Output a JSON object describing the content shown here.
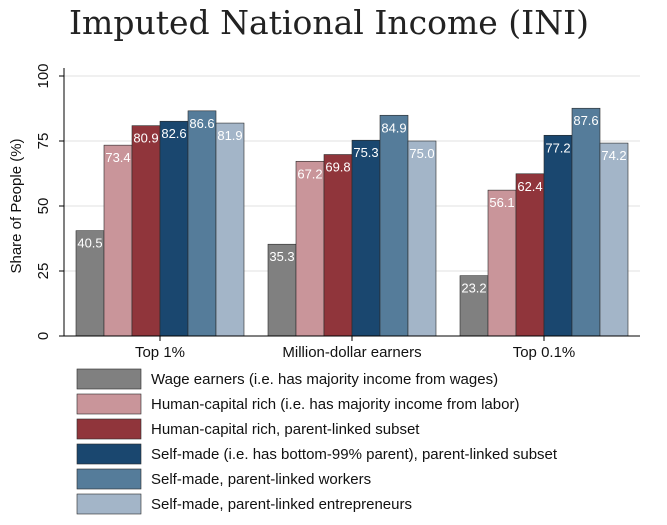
{
  "chart_data": {
    "type": "bar",
    "title": "Imputed National Income (INI)",
    "xlabel": "",
    "ylabel": "Share of People (%)",
    "ylim": [
      0,
      100
    ],
    "yticks": [
      "0",
      "25",
      "50",
      "75",
      "100"
    ],
    "grid": true,
    "legend_position": "bottom",
    "categories": [
      "Top 1%",
      "Million-dollar earners",
      "Top 0.1%"
    ],
    "series": [
      {
        "name": "Wage earners (i.e. has majority income from wages)",
        "color": "#808080",
        "values": [
          40.5,
          35.3,
          23.2
        ],
        "labels": [
          "40.5",
          "35.3",
          "23.2"
        ]
      },
      {
        "name": "Human-capital rich (i.e. has majority income from labor)",
        "color": "#c9959a",
        "values": [
          73.4,
          67.2,
          56.1
        ],
        "labels": [
          "73.4",
          "67.2",
          "56.1"
        ]
      },
      {
        "name": "Human-capital rich, parent-linked subset",
        "color": "#90353b",
        "values": [
          80.9,
          69.8,
          62.4
        ],
        "labels": [
          "80.9",
          "69.8",
          "62.4"
        ]
      },
      {
        "name": "Self-made (i.e. has bottom-99% parent), parent-linked subset",
        "color": "#1a476f",
        "values": [
          82.6,
          75.3,
          77.2
        ],
        "labels": [
          "82.6",
          "75.3",
          "77.2"
        ]
      },
      {
        "name": "Self-made, parent-linked workers",
        "color": "#557c9a",
        "values": [
          86.6,
          84.9,
          87.6
        ],
        "labels": [
          "86.6",
          "84.9",
          "87.6"
        ]
      },
      {
        "name": "Self-made, parent-linked entrepreneurs",
        "color": "#a3b5c8",
        "values": [
          81.9,
          75.0,
          74.2
        ],
        "labels": [
          "81.9",
          "75.0",
          "74.2"
        ]
      }
    ]
  }
}
